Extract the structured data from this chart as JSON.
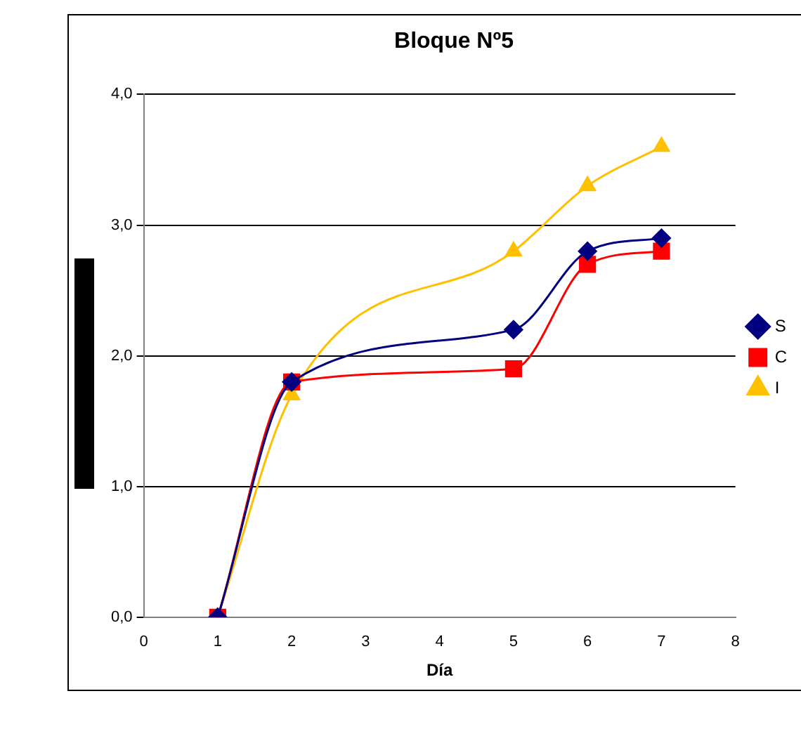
{
  "chart_data": {
    "type": "line",
    "title": "Bloque Nº5",
    "xlabel": "Día",
    "x": [
      1,
      2,
      5,
      6,
      7
    ],
    "series": [
      {
        "name": "S",
        "color": "#000080",
        "marker": "diamond",
        "values": [
          0,
          1.8,
          2.2,
          2.8,
          2.9
        ]
      },
      {
        "name": "C",
        "color": "#ff0000",
        "marker": "square",
        "values": [
          0,
          1.8,
          1.9,
          2.7,
          2.8
        ]
      },
      {
        "name": "I",
        "color": "#ffc000",
        "marker": "triangle",
        "values": [
          0,
          1.7,
          2.8,
          3.3,
          3.6
        ]
      }
    ],
    "xlim": [
      0,
      8
    ],
    "xticks": [
      0,
      1,
      2,
      3,
      4,
      5,
      6,
      7,
      8
    ],
    "ylim": [
      0,
      4
    ],
    "yticks": [
      {
        "value": 0,
        "label": "0,0"
      },
      {
        "value": 1,
        "label": "1,0"
      },
      {
        "value": 2,
        "label": "2,0"
      },
      {
        "value": 3,
        "label": "3,0"
      },
      {
        "value": 4,
        "label": "4,0"
      }
    ],
    "grid": "y",
    "legend": "right"
  }
}
